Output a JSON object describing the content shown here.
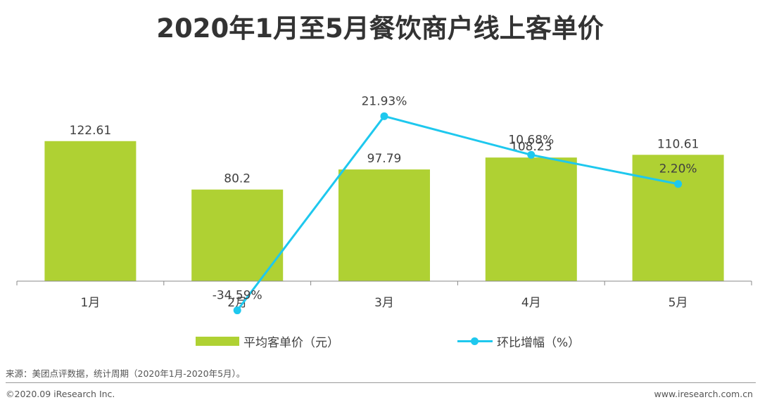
{
  "title": "2020年1月至5月餐饮商户线上客单价",
  "chart_data": {
    "type": "bar+line",
    "categories": [
      "1月",
      "2月",
      "3月",
      "4月",
      "5月"
    ],
    "series": [
      {
        "name": "平均客单价（元）",
        "type": "bar",
        "color": "#afd133",
        "values": [
          122.61,
          80.2,
          97.79,
          108.23,
          110.61
        ],
        "labels": [
          "122.61",
          "80.2",
          "97.79",
          "108.23",
          "110.61"
        ]
      },
      {
        "name": "环比增幅（%）",
        "type": "line",
        "color": "#1ec8ee",
        "values": [
          null,
          -34.59,
          21.93,
          10.68,
          2.2
        ],
        "labels": [
          "",
          "-34.59%",
          "21.93%",
          "10.68%",
          "2.20%"
        ]
      }
    ],
    "bar_axis_range": [
      0,
      160
    ],
    "line_axis_range": [
      -40,
      40
    ],
    "legend_position": "bottom"
  },
  "legend": {
    "bar_label": "平均客单价（元）",
    "line_label": "环比增幅（%）"
  },
  "footer": {
    "source": "来源：美团点评数据，统计周期（2020年1月-2020年5月）。",
    "copyright": "©2020.09 iResearch Inc.",
    "website": "www.iresearch.com.cn"
  }
}
